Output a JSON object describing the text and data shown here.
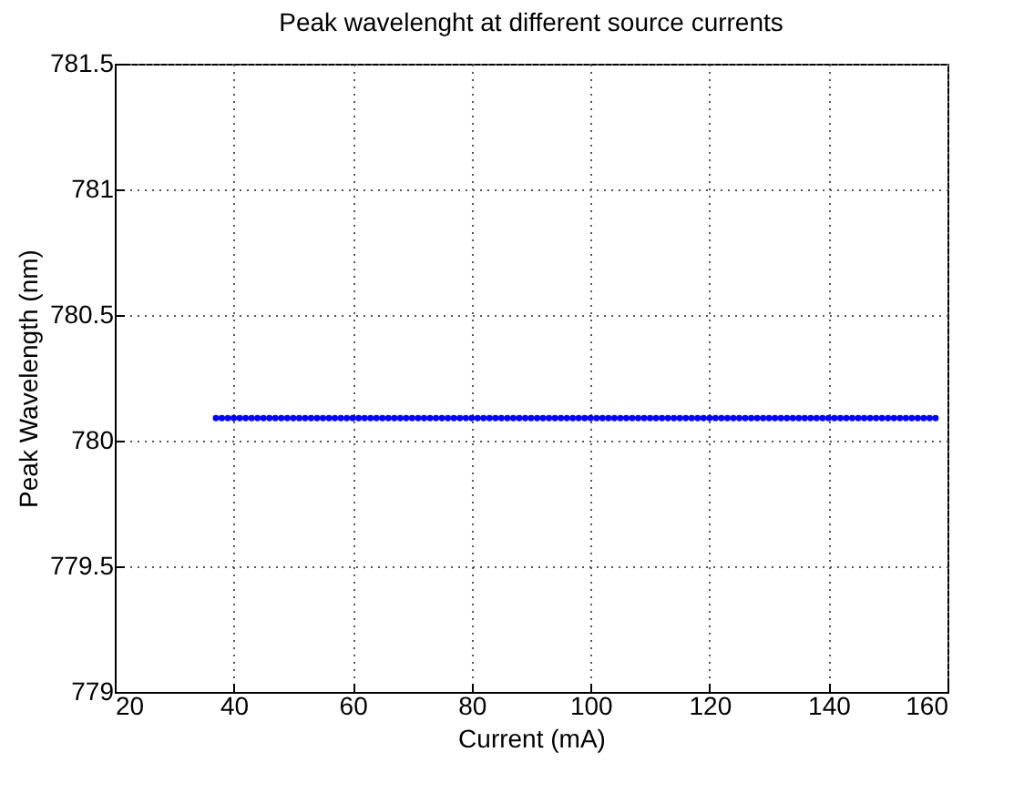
{
  "chart_data": {
    "type": "line",
    "title": "Peak wavelenght at different source currents",
    "xlabel": "Current (mA)",
    "ylabel": "Peak Wavelength (nm)",
    "x": [
      37,
      38,
      39,
      40,
      41,
      42,
      43,
      44,
      45,
      46,
      47,
      48,
      49,
      50,
      51,
      52,
      53,
      54,
      55,
      56,
      57,
      58,
      59,
      60,
      61,
      62,
      63,
      64,
      65,
      66,
      67,
      68,
      69,
      70,
      71,
      72,
      73,
      74,
      75,
      76,
      77,
      78,
      79,
      80,
      81,
      82,
      83,
      84,
      85,
      86,
      87,
      88,
      89,
      90,
      91,
      92,
      93,
      94,
      95,
      96,
      97,
      98,
      99,
      100,
      101,
      102,
      103,
      104,
      105,
      106,
      107,
      108,
      109,
      110,
      111,
      112,
      113,
      114,
      115,
      116,
      117,
      118,
      119,
      120,
      121,
      122,
      123,
      124,
      125,
      126,
      127,
      128,
      129,
      130,
      131,
      132,
      133,
      134,
      135,
      136,
      137,
      138,
      139,
      140,
      141,
      142,
      143,
      144,
      145,
      146,
      147,
      148,
      149,
      150,
      151,
      152,
      153,
      154,
      155,
      156,
      157,
      158
    ],
    "series": [
      {
        "color": "#0000ff",
        "values": [
          780.09,
          780.09,
          780.09,
          780.09,
          780.09,
          780.09,
          780.09,
          780.09,
          780.09,
          780.09,
          780.09,
          780.09,
          780.09,
          780.09,
          780.09,
          780.09,
          780.09,
          780.09,
          780.09,
          780.09,
          780.09,
          780.09,
          780.09,
          780.09,
          780.09,
          780.09,
          780.09,
          780.09,
          780.09,
          780.09,
          780.09,
          780.09,
          780.09,
          780.09,
          780.09,
          780.09,
          780.09,
          780.09,
          780.09,
          780.09,
          780.09,
          780.09,
          780.09,
          780.09,
          780.09,
          780.09,
          780.09,
          780.09,
          780.09,
          780.09,
          780.09,
          780.09,
          780.09,
          780.09,
          780.09,
          780.09,
          780.09,
          780.09,
          780.09,
          780.09,
          780.09,
          780.09,
          780.09,
          780.09,
          780.09,
          780.09,
          780.09,
          780.09,
          780.09,
          780.09,
          780.09,
          780.09,
          780.09,
          780.09,
          780.09,
          780.09,
          780.09,
          780.09,
          780.09,
          780.09,
          780.09,
          780.09,
          780.09,
          780.09,
          780.09,
          780.09,
          780.09,
          780.09,
          780.09,
          780.09,
          780.09,
          780.09,
          780.09,
          780.09,
          780.09,
          780.09,
          780.09,
          780.09,
          780.09,
          780.09,
          780.09,
          780.09,
          780.09,
          780.09,
          780.09,
          780.09,
          780.09,
          780.09,
          780.09,
          780.09,
          780.09,
          780.09,
          780.09,
          780.09,
          780.09,
          780.09,
          780.09,
          780.09,
          780.09,
          780.09,
          780.09,
          780.09
        ]
      }
    ],
    "xlim": [
      20,
      160
    ],
    "xticks": [
      20,
      40,
      60,
      80,
      100,
      120,
      140,
      160
    ],
    "ylim": [
      779,
      781.5
    ],
    "yticks": [
      779,
      779.5,
      780,
      780.5,
      781,
      781.5
    ],
    "grid": true,
    "marker": "circle",
    "line_style": "solid",
    "legend": false
  }
}
